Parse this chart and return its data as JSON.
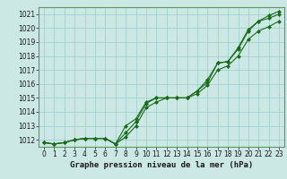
{
  "xlabel": "Graphe pression niveau de la mer (hPa)",
  "ylim": [
    1011.5,
    1021.5
  ],
  "xlim": [
    -0.5,
    23.5
  ],
  "yticks": [
    1012,
    1013,
    1014,
    1015,
    1016,
    1017,
    1018,
    1019,
    1020,
    1021
  ],
  "xticks": [
    0,
    1,
    2,
    3,
    4,
    5,
    6,
    7,
    8,
    9,
    10,
    11,
    12,
    13,
    14,
    15,
    16,
    17,
    18,
    19,
    20,
    21,
    22,
    23
  ],
  "background_color": "#cce8e4",
  "grid_color": "#99cccc",
  "line_color": "#1a6b1a",
  "series": [
    [
      1011.8,
      1011.7,
      1011.8,
      1012.0,
      1012.1,
      1012.1,
      1012.1,
      1011.7,
      1012.5,
      1013.3,
      1014.6,
      1015.0,
      1015.0,
      1015.0,
      1015.0,
      1015.5,
      1016.1,
      1017.5,
      1017.6,
      1018.5,
      1019.8,
      1020.5,
      1020.7,
      1021.0
    ],
    [
      1011.8,
      1011.7,
      1011.8,
      1012.0,
      1012.1,
      1012.1,
      1012.1,
      1011.7,
      1012.2,
      1013.0,
      1014.3,
      1014.7,
      1015.0,
      1015.0,
      1015.0,
      1015.3,
      1015.9,
      1017.0,
      1017.3,
      1018.0,
      1019.2,
      1019.8,
      1020.1,
      1020.5
    ],
    [
      1011.8,
      1011.7,
      1011.8,
      1012.0,
      1012.1,
      1012.1,
      1012.1,
      1011.7,
      1013.0,
      1013.5,
      1014.7,
      1015.0,
      1015.0,
      1015.0,
      1015.0,
      1015.5,
      1016.3,
      1017.5,
      1017.6,
      1018.6,
      1019.9,
      1020.5,
      1020.9,
      1021.2
    ]
  ],
  "marker": "D",
  "markersize": 2,
  "linewidth": 0.8,
  "tick_fontsize": 5.5,
  "xlabel_fontsize": 6.5
}
